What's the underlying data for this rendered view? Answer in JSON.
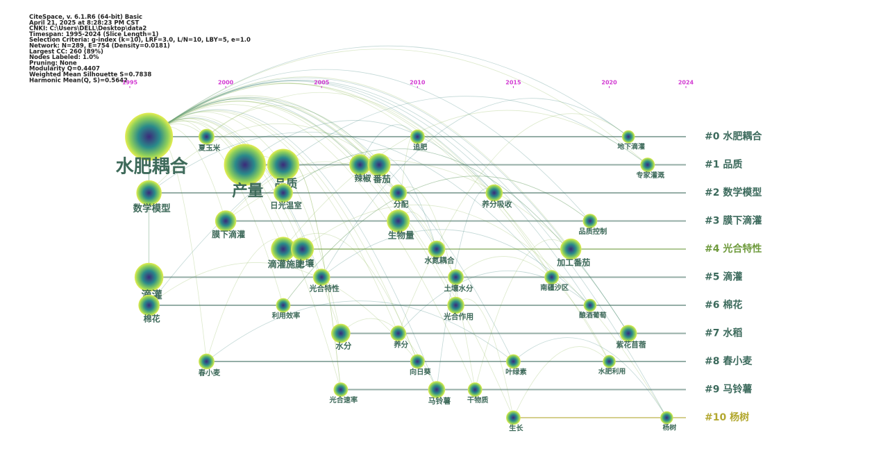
{
  "chart_data": {
    "type": "timeline",
    "info": [
      "CiteSpace, v. 6.1.R6 (64-bit) Basic",
      "April 21, 2025 at 8:28:23 PM CST",
      "CNKI: C:\\Users\\DELL\\Desktop\\data2",
      "Timespan: 1995-2024 (Slice Length=1)",
      "Selection Criteria: g-index (k=10), LRF=3.0, L/N=10, LBY=5, e=1.0",
      "Network: N=289, E=754 (Density=0.0181)",
      "Largest CC: 260 (89%)",
      "Nodes Labeled: 1.0%",
      "Pruning: None",
      "Modularity Q=0.4407",
      "Weighted Mean Silhouette S=0.7838",
      "Harmonic Mean(Q, S)=0.5642"
    ],
    "xlim": [
      1995,
      2024
    ],
    "xticks": [
      1995,
      2000,
      2005,
      2010,
      2015,
      2020,
      2024
    ],
    "series": [
      {
        "name": "#0 水肥耦合",
        "color": "#3c6a5c",
        "nodes": [
          {
            "label": "水肥耦合",
            "year": 1996,
            "size": 60
          },
          {
            "label": "夏玉米",
            "year": 1999,
            "size": 5
          },
          {
            "label": "追肥",
            "year": 2010,
            "size": 4
          },
          {
            "label": "地下滴灌",
            "year": 2021,
            "size": 3
          }
        ]
      },
      {
        "name": "#1 品质",
        "color": "#3c6a5c",
        "nodes": [
          {
            "label": "产量",
            "year": 2001,
            "size": 45
          },
          {
            "label": "品质",
            "year": 2003,
            "size": 25
          },
          {
            "label": "辣椒",
            "year": 2007,
            "size": 10
          },
          {
            "label": "番茄",
            "year": 2008,
            "size": 12
          },
          {
            "label": "专家灌溉",
            "year": 2022,
            "size": 4
          }
        ]
      },
      {
        "name": "#2 数学模型",
        "color": "#3c6a5c",
        "nodes": [
          {
            "label": "数学模型",
            "year": 1996,
            "size": 15
          },
          {
            "label": "日光温室",
            "year": 2003,
            "size": 8
          },
          {
            "label": "分配",
            "year": 2009,
            "size": 6
          },
          {
            "label": "养分吸收",
            "year": 2014,
            "size": 6
          }
        ]
      },
      {
        "name": "#3 膜下滴灌",
        "color": "#3c6a5c",
        "nodes": [
          {
            "label": "膜下滴灌",
            "year": 2000,
            "size": 10
          },
          {
            "label": "生物量",
            "year": 2009,
            "size": 12
          },
          {
            "label": "品质控制",
            "year": 2019,
            "size": 4
          }
        ]
      },
      {
        "name": "#4 光合特性",
        "color": "#6e9a3c",
        "nodes": [
          {
            "label": "滴灌施肥",
            "year": 2003,
            "size": 14
          },
          {
            "label": "土壤",
            "year": 2004,
            "size": 12
          },
          {
            "label": "水氮耦合",
            "year": 2011,
            "size": 6
          },
          {
            "label": "加工番茄",
            "year": 2018,
            "size": 10
          }
        ]
      },
      {
        "name": "#5 滴灌",
        "color": "#3c6a5c",
        "nodes": [
          {
            "label": "滴灌",
            "year": 1996,
            "size": 20
          },
          {
            "label": "光合特性",
            "year": 2005,
            "size": 6
          },
          {
            "label": "土壤水分",
            "year": 2012,
            "size": 5
          },
          {
            "label": "南疆沙区",
            "year": 2017,
            "size": 4
          }
        ]
      },
      {
        "name": "#6 棉花",
        "color": "#3c6a5c",
        "nodes": [
          {
            "label": "棉花",
            "year": 1996,
            "size": 10
          },
          {
            "label": "利用效率",
            "year": 2003,
            "size": 4
          },
          {
            "label": "光合作用",
            "year": 2012,
            "size": 6
          },
          {
            "label": "酿酒葡萄",
            "year": 2019,
            "size": 3
          }
        ]
      },
      {
        "name": "#7 水稻",
        "color": "#3c6a5c",
        "nodes": [
          {
            "label": "水分",
            "year": 2006,
            "size": 8
          },
          {
            "label": "养分",
            "year": 2009,
            "size": 5
          },
          {
            "label": "紫花苜蓿",
            "year": 2021,
            "size": 6
          }
        ]
      },
      {
        "name": "#8 春小麦",
        "color": "#3c6a5c",
        "nodes": [
          {
            "label": "春小麦",
            "year": 1999,
            "size": 5
          },
          {
            "label": "向日葵",
            "year": 2010,
            "size": 4
          },
          {
            "label": "叶绿素",
            "year": 2015,
            "size": 4
          },
          {
            "label": "水肥利用",
            "year": 2020,
            "size": 3
          }
        ]
      },
      {
        "name": "#9 马铃薯",
        "color": "#3c6a5c",
        "nodes": [
          {
            "label": "光合速率",
            "year": 2006,
            "size": 4
          },
          {
            "label": "马铃薯",
            "year": 2011,
            "size": 6
          },
          {
            "label": "干物质",
            "year": 2013,
            "size": 4
          }
        ]
      },
      {
        "name": "#10 杨树",
        "color": "#b3a830",
        "nodes": [
          {
            "label": "生长",
            "year": 2015,
            "size": 4
          },
          {
            "label": "杨树",
            "year": 2023,
            "size": 3
          }
        ]
      }
    ]
  }
}
